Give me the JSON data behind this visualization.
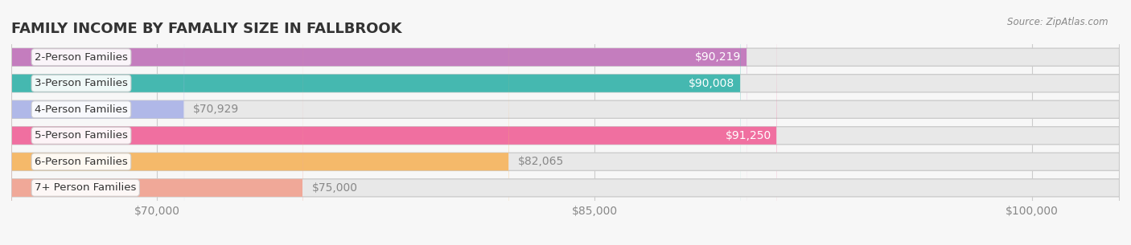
{
  "title": "FAMILY INCOME BY FAMALIY SIZE IN FALLBROOK",
  "source": "Source: ZipAtlas.com",
  "categories": [
    "2-Person Families",
    "3-Person Families",
    "4-Person Families",
    "5-Person Families",
    "6-Person Families",
    "7+ Person Families"
  ],
  "values": [
    90219,
    90008,
    70929,
    91250,
    82065,
    75000
  ],
  "bar_colors": [
    "#c47dbe",
    "#45b8b0",
    "#b0b8e8",
    "#f06fa0",
    "#f5b96a",
    "#f0a898"
  ],
  "bar_bg_color": "#eeeeee",
  "label_colors": [
    "#ffffff",
    "#ffffff",
    "#888888",
    "#ffffff",
    "#888888",
    "#888888"
  ],
  "xmin": 65000,
  "xmax": 103000,
  "xticks": [
    70000,
    85000,
    100000
  ],
  "xtick_labels": [
    "$70,000",
    "$85,000",
    "$100,000"
  ],
  "value_labels": [
    "$90,219",
    "$90,008",
    "$70,929",
    "$91,250",
    "$82,065",
    "$75,000"
  ],
  "background_color": "#f7f7f7",
  "bar_bg_outer_color": "#e0e0e0",
  "title_fontsize": 13,
  "axis_fontsize": 10,
  "label_fontsize": 9.5,
  "value_fontsize": 10
}
